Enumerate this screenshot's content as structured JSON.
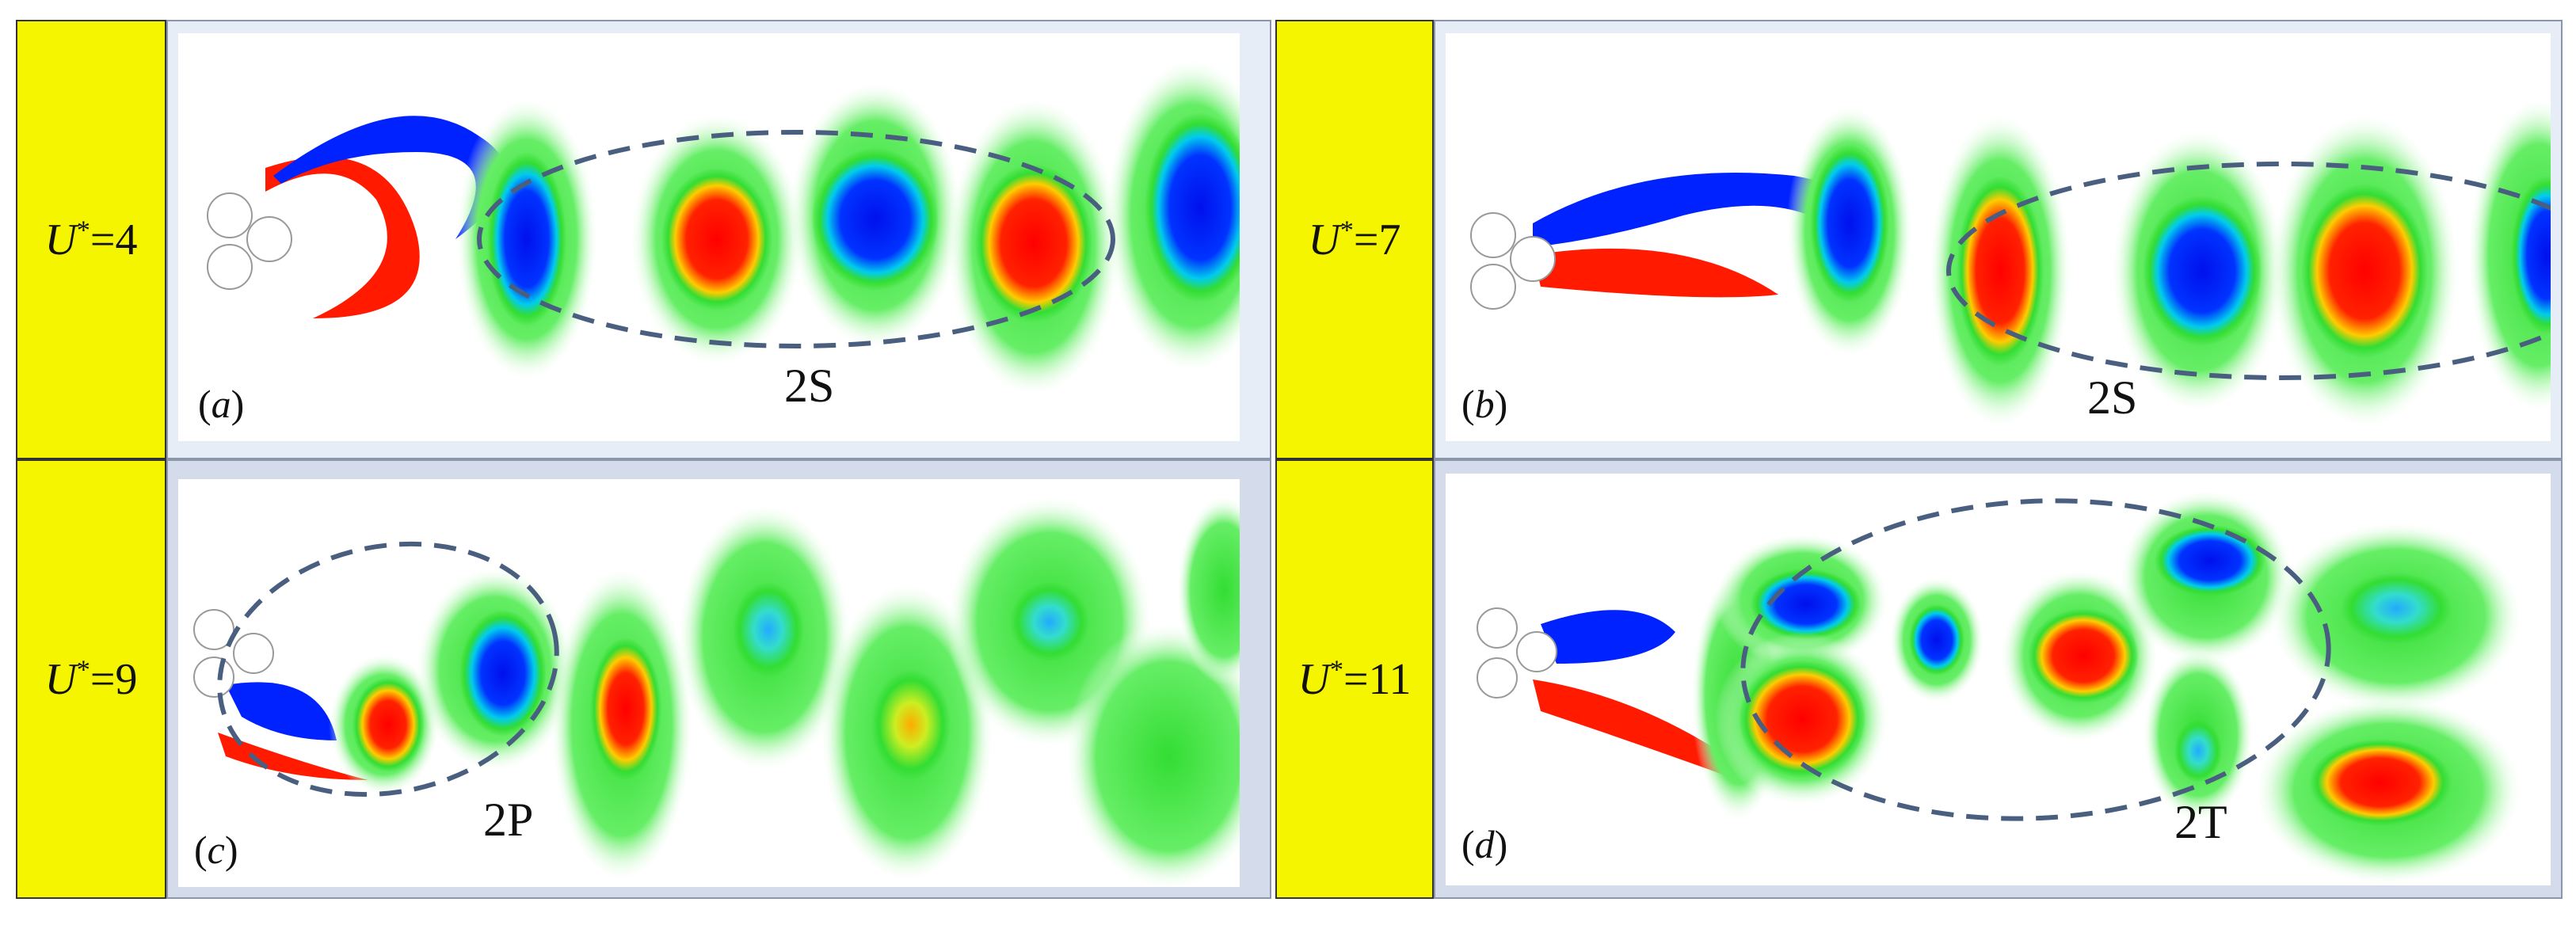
{
  "panels": [
    {
      "id": "a",
      "velocity_label": "U",
      "superscript": "*",
      "value": "=4",
      "letter": "a",
      "mode": "2S"
    },
    {
      "id": "b",
      "velocity_label": "U",
      "superscript": "*",
      "value": "=7",
      "letter": "b",
      "mode": "2S"
    },
    {
      "id": "c",
      "velocity_label": "U",
      "superscript": "*",
      "value": "=9",
      "letter": "c",
      "mode": "2P"
    },
    {
      "id": "d",
      "velocity_label": "U",
      "superscript": "*",
      "value": "=11",
      "letter": "d",
      "mode": "2T"
    }
  ],
  "colors": {
    "label_bg": "#f5f500",
    "positive_vorticity": "#ff1a00",
    "negative_vorticity": "#0022ff",
    "weak_vorticity": "#33dd33",
    "background": "#ffffff",
    "ellipse": "#4a5f80"
  },
  "icons": [
    "cylinder-icon"
  ]
}
